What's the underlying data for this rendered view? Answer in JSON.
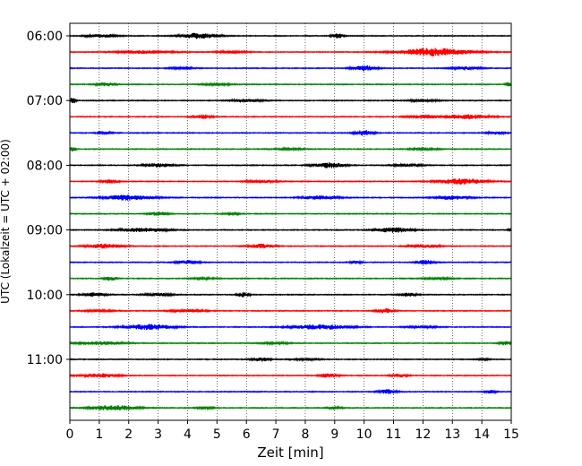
{
  "chart_data": {
    "type": "line",
    "title": "",
    "xlabel": "Zeit  [min]",
    "ylabel": "UTC (Lokalzeit = UTC + 02:00)",
    "xlim": [
      0,
      15
    ],
    "xticks": [
      "0",
      "1",
      "2",
      "3",
      "4",
      "5",
      "6",
      "7",
      "8",
      "9",
      "10",
      "11",
      "12",
      "13",
      "14",
      "15"
    ],
    "row_interval_minutes": 15,
    "yticks": [
      "06:00",
      "07:00",
      "08:00",
      "09:00",
      "10:00",
      "11:00"
    ],
    "grid": "x-dotted",
    "colors": [
      "#000000",
      "#ff0000",
      "#0000ff",
      "#008000"
    ],
    "series": [
      {
        "start": "06:00",
        "color": "#000000",
        "events": [
          [
            1.1,
            0.5,
            0.8
          ],
          [
            4.4,
            0.6,
            1.3
          ],
          [
            9.1,
            0.2,
            1.0
          ]
        ]
      },
      {
        "start": "06:15",
        "color": "#ff0000",
        "events": [
          [
            2.5,
            1.0,
            0.6
          ],
          [
            5.5,
            0.5,
            0.5
          ],
          [
            12.4,
            1.2,
            1.8
          ]
        ]
      },
      {
        "start": "06:30",
        "color": "#0000ff",
        "events": [
          [
            3.8,
            0.4,
            0.5
          ],
          [
            10.0,
            0.4,
            1.2
          ],
          [
            13.5,
            0.5,
            0.6
          ]
        ]
      },
      {
        "start": "06:45",
        "color": "#008000",
        "events": [
          [
            1.2,
            0.3,
            0.8
          ],
          [
            5.0,
            0.5,
            0.4
          ],
          [
            14.9,
            0.1,
            1.0
          ]
        ]
      },
      {
        "start": "07:00",
        "color": "#000000",
        "events": [
          [
            0.1,
            0.1,
            1.5
          ],
          [
            6.0,
            0.5,
            0.7
          ],
          [
            12.0,
            0.5,
            0.5
          ]
        ]
      },
      {
        "start": "07:15",
        "color": "#ff0000",
        "events": [
          [
            4.5,
            0.3,
            1.0
          ],
          [
            12.0,
            0.5,
            0.8
          ],
          [
            13.5,
            0.8,
            1.0
          ]
        ]
      },
      {
        "start": "07:30",
        "color": "#0000ff",
        "events": [
          [
            1.2,
            0.3,
            0.4
          ],
          [
            10.0,
            0.3,
            1.2
          ],
          [
            14.5,
            0.3,
            0.6
          ]
        ]
      },
      {
        "start": "07:45",
        "color": "#008000",
        "events": [
          [
            0.1,
            0.1,
            1.0
          ],
          [
            7.5,
            0.5,
            0.4
          ],
          [
            12.0,
            0.5,
            0.5
          ]
        ]
      },
      {
        "start": "08:00",
        "color": "#000000",
        "events": [
          [
            3.0,
            0.5,
            0.8
          ],
          [
            8.8,
            0.5,
            1.2
          ],
          [
            11.5,
            0.5,
            0.6
          ]
        ]
      },
      {
        "start": "08:15",
        "color": "#ff0000",
        "events": [
          [
            1.4,
            0.3,
            1.0
          ],
          [
            6.5,
            0.5,
            0.6
          ],
          [
            13.3,
            0.8,
            1.3
          ]
        ]
      },
      {
        "start": "08:30",
        "color": "#0000ff",
        "events": [
          [
            2.0,
            0.8,
            1.2
          ],
          [
            8.5,
            0.6,
            0.9
          ],
          [
            13.0,
            0.6,
            0.9
          ]
        ]
      },
      {
        "start": "08:45",
        "color": "#008000",
        "events": [
          [
            3.0,
            0.3,
            0.8
          ],
          [
            5.5,
            0.3,
            0.4
          ]
        ]
      },
      {
        "start": "09:00",
        "color": "#000000",
        "events": [
          [
            2.5,
            0.8,
            0.9
          ],
          [
            11.0,
            0.6,
            1.1
          ],
          [
            15.0,
            0.1,
            0.8
          ]
        ]
      },
      {
        "start": "09:15",
        "color": "#ff0000",
        "events": [
          [
            1.2,
            0.6,
            1.0
          ],
          [
            6.5,
            0.4,
            0.9
          ],
          [
            12.0,
            0.5,
            0.8
          ]
        ]
      },
      {
        "start": "09:30",
        "color": "#0000ff",
        "events": [
          [
            4.0,
            0.4,
            0.8
          ],
          [
            9.7,
            0.2,
            0.6
          ],
          [
            12.1,
            0.3,
            1.0
          ]
        ]
      },
      {
        "start": "09:45",
        "color": "#008000",
        "events": [
          [
            1.4,
            0.2,
            1.0
          ],
          [
            4.5,
            0.4,
            0.4
          ],
          [
            12.5,
            0.5,
            0.4
          ]
        ]
      },
      {
        "start": "10:00",
        "color": "#000000",
        "events": [
          [
            0.8,
            0.4,
            0.8
          ],
          [
            3.0,
            0.5,
            0.6
          ],
          [
            5.9,
            0.2,
            1.1
          ],
          [
            11.5,
            0.3,
            0.8
          ]
        ]
      },
      {
        "start": "10:15",
        "color": "#ff0000",
        "events": [
          [
            1.0,
            0.5,
            0.5
          ],
          [
            4.0,
            0.6,
            0.6
          ],
          [
            10.7,
            0.3,
            1.1
          ]
        ]
      },
      {
        "start": "10:30",
        "color": "#0000ff",
        "events": [
          [
            2.7,
            0.8,
            1.2
          ],
          [
            8.5,
            1.0,
            1.1
          ],
          [
            12.0,
            0.5,
            0.5
          ]
        ]
      },
      {
        "start": "10:45",
        "color": "#008000",
        "events": [
          [
            1.0,
            0.8,
            0.7
          ],
          [
            7.0,
            0.5,
            0.4
          ],
          [
            14.8,
            0.2,
            0.8
          ]
        ]
      },
      {
        "start": "11:00",
        "color": "#000000",
        "events": [
          [
            6.5,
            0.3,
            0.9
          ],
          [
            8.0,
            0.5,
            0.4
          ],
          [
            14.0,
            0.2,
            0.4
          ]
        ]
      },
      {
        "start": "11:15",
        "color": "#ff0000",
        "events": [
          [
            1.0,
            0.6,
            0.9
          ],
          [
            8.8,
            0.3,
            1.0
          ],
          [
            11.2,
            0.3,
            0.7
          ]
        ]
      },
      {
        "start": "11:30",
        "color": "#0000ff",
        "events": [
          [
            10.8,
            0.3,
            1.0
          ],
          [
            14.3,
            0.2,
            0.7
          ]
        ]
      },
      {
        "start": "11:45",
        "color": "#008000",
        "events": [
          [
            1.5,
            0.8,
            1.2
          ],
          [
            4.6,
            0.3,
            0.5
          ],
          [
            9.0,
            0.3,
            0.4
          ]
        ]
      }
    ]
  }
}
